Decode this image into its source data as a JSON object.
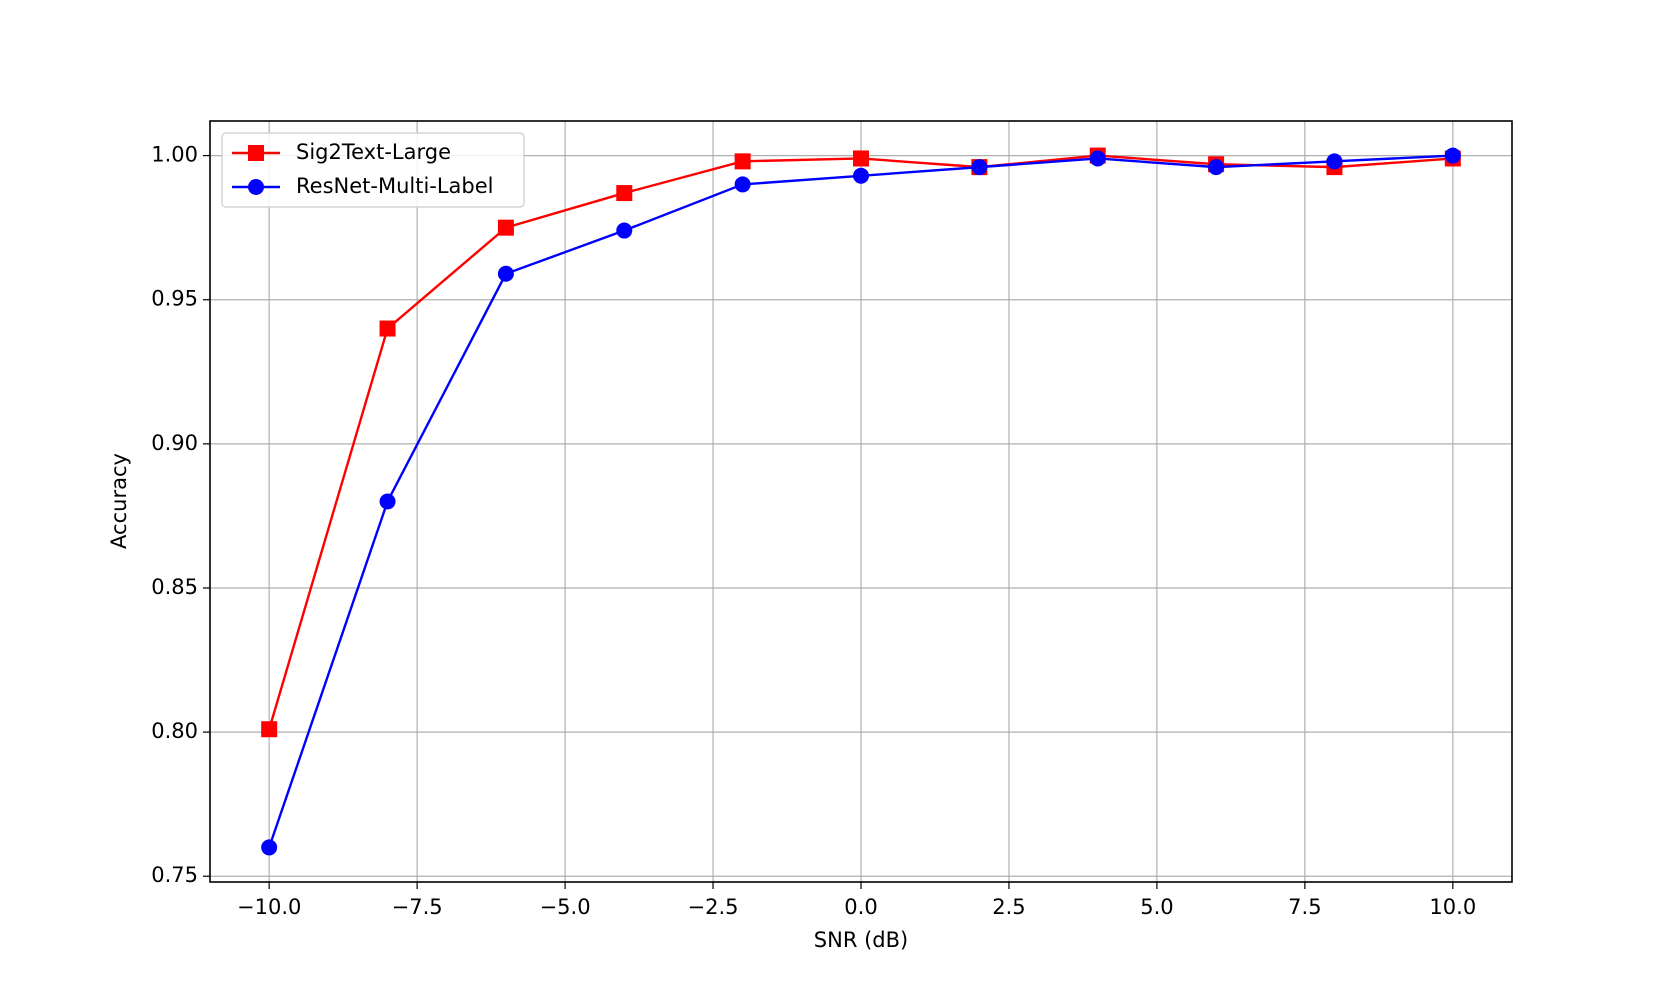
{
  "chart_data": {
    "type": "line",
    "x_label": "SNR (dB)",
    "y_label": "Accuracy",
    "x": [
      -10,
      -8,
      -6,
      -4,
      -2,
      0,
      2,
      4,
      6,
      8,
      10
    ],
    "series": [
      {
        "name": "Sig2Text-Large",
        "color": "#ff0000",
        "marker": "square",
        "values": [
          0.801,
          0.94,
          0.975,
          0.987,
          0.998,
          0.999,
          0.996,
          1.0,
          0.997,
          0.996,
          0.999
        ]
      },
      {
        "name": "ResNet-Multi-Label",
        "color": "#0000ff",
        "marker": "circle",
        "values": [
          0.76,
          0.88,
          0.959,
          0.974,
          0.99,
          0.993,
          0.996,
          0.999,
          0.996,
          0.998,
          1.0
        ]
      }
    ],
    "xlim": [
      -11,
      11
    ],
    "ylim": [
      0.748,
      1.012
    ],
    "xticks": [
      {
        "value": -10,
        "label": "−10.0"
      },
      {
        "value": -7.5,
        "label": "−7.5"
      },
      {
        "value": -5,
        "label": "−5.0"
      },
      {
        "value": -2.5,
        "label": "−2.5"
      },
      {
        "value": 0,
        "label": "0.0"
      },
      {
        "value": 2.5,
        "label": "2.5"
      },
      {
        "value": 5,
        "label": "5.0"
      },
      {
        "value": 7.5,
        "label": "7.5"
      },
      {
        "value": 10,
        "label": "10.0"
      }
    ],
    "yticks": [
      0.75,
      {
        "value": 0.8,
        "label": "0.80"
      },
      0.85,
      {
        "value": 0.9,
        "label": "0.90"
      },
      0.95,
      {
        "value": 1.0,
        "label": "1.00"
      }
    ],
    "grid": true,
    "legend": "upper left"
  }
}
